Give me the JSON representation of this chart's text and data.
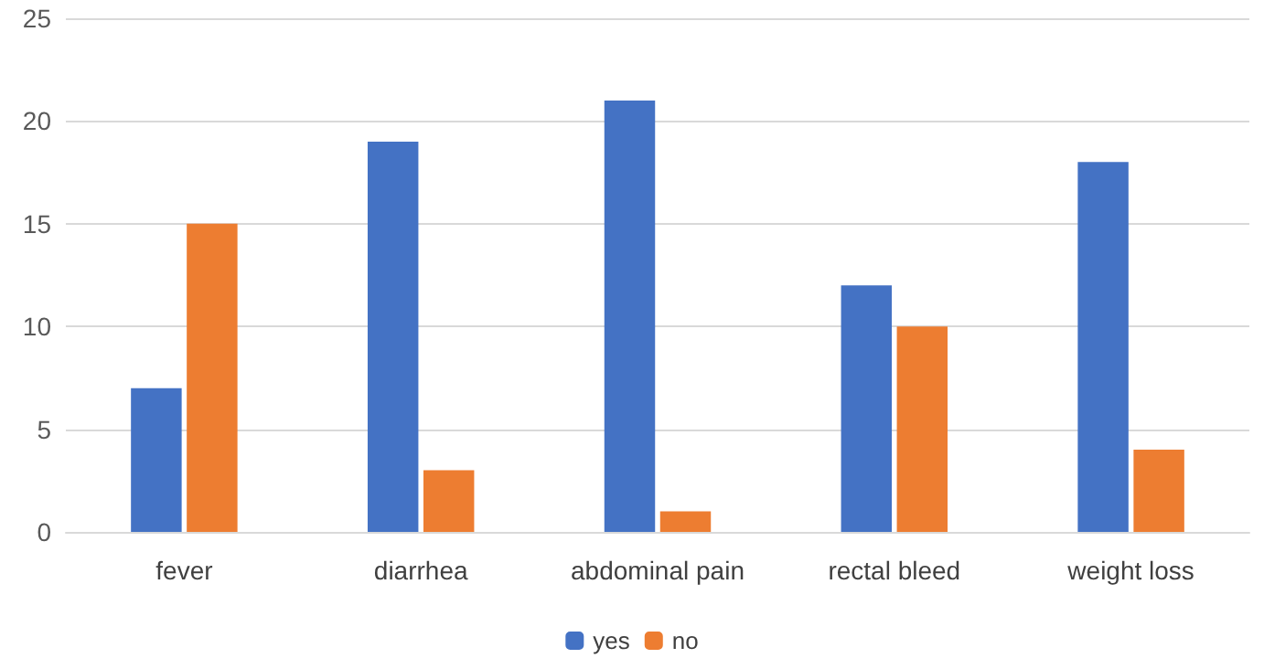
{
  "chart_data": {
    "type": "bar",
    "categories": [
      "fever",
      "diarrhea",
      "abdominal pain",
      "rectal bleed",
      "weight loss"
    ],
    "series": [
      {
        "name": "yes",
        "color": "#4472c4",
        "values": [
          7,
          19,
          21,
          12,
          18
        ]
      },
      {
        "name": "no",
        "color": "#ed7d31",
        "values": [
          15,
          3,
          1,
          10,
          4
        ]
      }
    ],
    "ylim": [
      0,
      25
    ],
    "yticks": [
      0,
      5,
      10,
      15,
      20,
      25
    ],
    "grid": "y",
    "legend": "bottom"
  }
}
